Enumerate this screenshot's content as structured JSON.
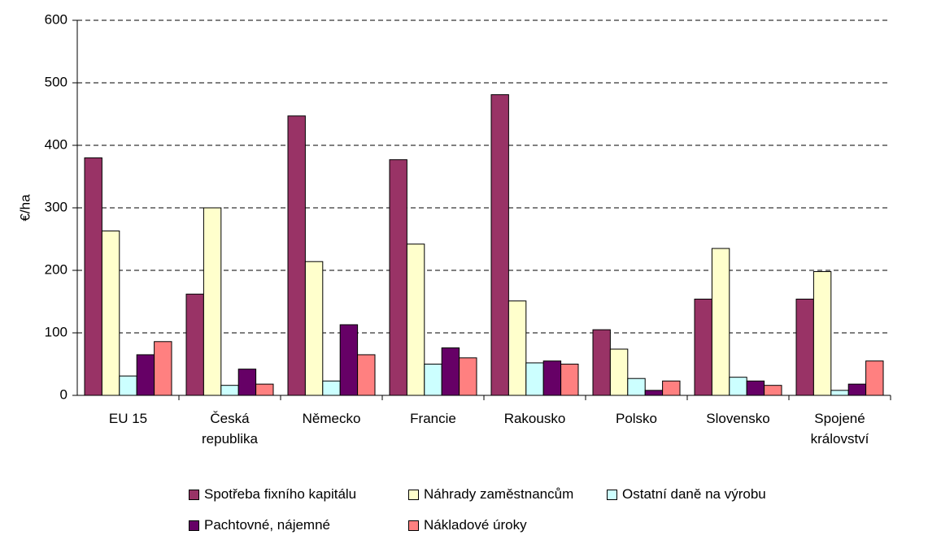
{
  "chart_data": {
    "type": "bar",
    "y_label": "€/ha",
    "categories": [
      "EU 15",
      "Česká republika",
      "Německo",
      "Francie",
      "Rakousko",
      "Polsko",
      "Slovensko",
      "Spojené království"
    ],
    "series": [
      {
        "name": "Spotřeba fixního kapitálu",
        "color": "#993366",
        "values": [
          380,
          162,
          447,
          377,
          481,
          105,
          154,
          154
        ]
      },
      {
        "name": "Náhrady zaměstnancům",
        "color": "#ffffcc",
        "values": [
          263,
          300,
          214,
          242,
          151,
          74,
          235,
          198
        ]
      },
      {
        "name": "Ostatní daně na výrobu",
        "color": "#ccffff",
        "values": [
          31,
          16,
          23,
          50,
          52,
          27,
          29,
          8
        ]
      },
      {
        "name": "Pachtovné, nájemné",
        "color": "#660066",
        "values": [
          65,
          42,
          113,
          76,
          55,
          8,
          23,
          18
        ]
      },
      {
        "name": "Nákladové úroky",
        "color": "#ff8080",
        "values": [
          86,
          18,
          65,
          60,
          50,
          23,
          16,
          55
        ]
      }
    ],
    "ylim": [
      0,
      600
    ],
    "yticks": [
      0,
      100,
      200,
      300,
      400,
      500,
      600
    ],
    "grid": true
  }
}
